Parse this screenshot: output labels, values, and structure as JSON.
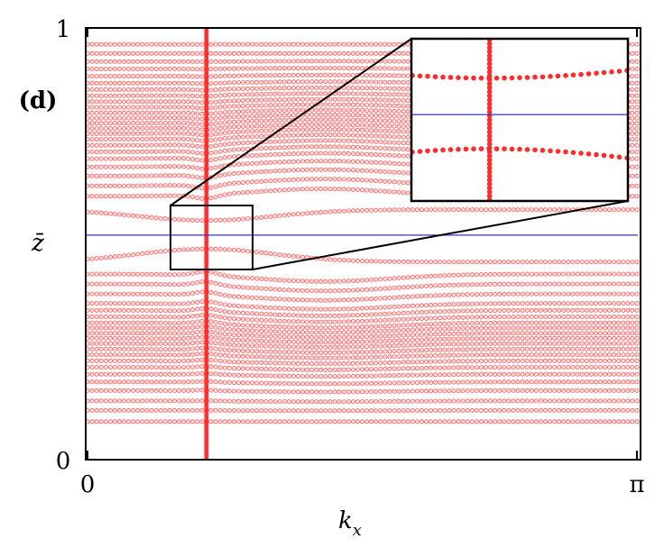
{
  "chart_data": {
    "type": "scatter",
    "panel_label": "(d)",
    "xlabel_base": "k",
    "xlabel_sub": "x",
    "ylabel": "z̄",
    "xlim": [
      0,
      3.14159
    ],
    "ylim": [
      0,
      1
    ],
    "x_ticks": [
      {
        "value": 0,
        "label": "0"
      },
      {
        "value": 3.14159,
        "label": "π"
      }
    ],
    "y_ticks": [
      {
        "value": 0,
        "label": "0"
      },
      {
        "value": 1,
        "label": "1"
      }
    ],
    "grid": false,
    "legend": "none",
    "colors": {
      "points": "#ff2a2a",
      "reference_line": "#3333cc",
      "frame": "#000000"
    },
    "reference_line": {
      "y": 0.52
    },
    "singular_column": {
      "x": 0.68
    },
    "bands": {
      "upper_y": [
        0.962,
        0.941,
        0.922,
        0.905,
        0.888,
        0.872,
        0.857,
        0.843,
        0.829,
        0.816,
        0.803,
        0.791,
        0.779,
        0.767,
        0.755,
        0.742,
        0.728,
        0.713,
        0.697,
        0.678,
        0.657,
        0.634,
        0.61
      ],
      "lower_y": [
        0.43,
        0.407,
        0.384,
        0.362,
        0.346,
        0.331,
        0.317,
        0.305,
        0.293,
        0.281,
        0.269,
        0.256,
        0.243,
        0.229,
        0.214,
        0.198,
        0.18,
        0.16,
        0.136,
        0.114,
        0.088
      ],
      "gap_edges_far": [
        0.579,
        0.458
      ],
      "gap_edges_at_column": [
        0.554,
        0.488
      ]
    },
    "zoom": {
      "source_x": [
        0.5,
        1.0
      ],
      "source_y": [
        0.44,
        0.59
      ]
    }
  }
}
